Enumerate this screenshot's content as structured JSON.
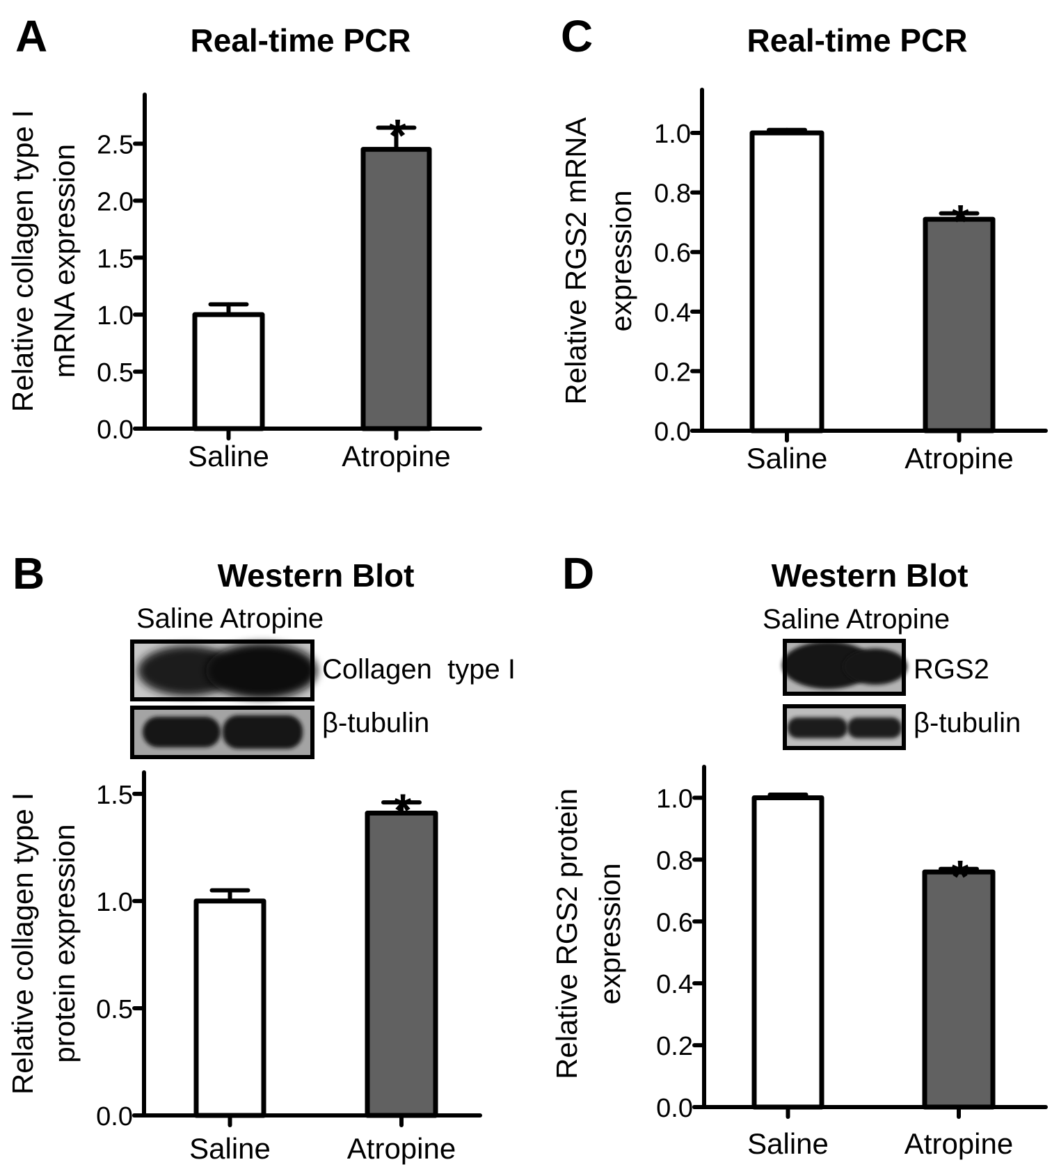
{
  "colors": {
    "saline_fill": "#ffffff",
    "atropine_fill": "#616161",
    "stroke": "#000000"
  },
  "chart_data": [
    {
      "panel": "A",
      "type": "bar",
      "title": "Real-time PCR",
      "ylabel_lines": [
        "Relative collagen type I",
        "mRNA expression"
      ],
      "xlabel": "",
      "categories": [
        "Saline",
        "Atropine"
      ],
      "values": [
        1.0,
        2.45
      ],
      "errors": [
        0.09,
        0.19
      ],
      "significance": [
        "",
        "*"
      ],
      "yticks": [
        "0.0",
        "0.5",
        "1.0",
        "1.5",
        "2.0",
        "2.5"
      ],
      "ytick_values": [
        0,
        0.5,
        1.0,
        1.5,
        2.0,
        2.5
      ],
      "ylim": [
        0,
        2.93
      ],
      "grid": false
    },
    {
      "panel": "B",
      "type": "bar",
      "title": "Western Blot",
      "ylabel_lines": [
        "Relative collagen type I",
        "protein expression"
      ],
      "xlabel": "",
      "categories": [
        "Saline",
        "Atropine"
      ],
      "values": [
        1.0,
        1.41
      ],
      "errors": [
        0.05,
        0.05
      ],
      "significance": [
        "",
        "*"
      ],
      "yticks": [
        "0.0",
        "0.5",
        "1.0",
        "1.5"
      ],
      "ytick_values": [
        0,
        0.5,
        1.0,
        1.5
      ],
      "ylim": [
        0,
        1.6
      ],
      "grid": false
    },
    {
      "panel": "C",
      "type": "bar",
      "title": "Real-time PCR",
      "ylabel_lines": [
        "Relative RGS2 mRNA",
        "expression"
      ],
      "xlabel": "",
      "categories": [
        "Saline",
        "Atropine"
      ],
      "values": [
        1.0,
        0.71
      ],
      "errors": [
        0.01,
        0.02
      ],
      "significance": [
        "",
        "*"
      ],
      "yticks": [
        "0.0",
        "0.2",
        "0.4",
        "0.6",
        "0.8",
        "1.0"
      ],
      "ytick_values": [
        0,
        0.2,
        0.4,
        0.6,
        0.8,
        1.0
      ],
      "ylim": [
        0,
        1.145
      ],
      "grid": false
    },
    {
      "panel": "D",
      "type": "bar",
      "title": "Western Blot",
      "ylabel_lines": [
        "Relative RGS2 protein",
        "expression"
      ],
      "xlabel": "",
      "categories": [
        "Saline",
        "Atropine"
      ],
      "values": [
        1.0,
        0.76
      ],
      "errors": [
        0.01,
        0.01
      ],
      "significance": [
        "",
        "*"
      ],
      "yticks": [
        "0.0",
        "0.2",
        "0.4",
        "0.6",
        "0.8",
        "1.0"
      ],
      "ytick_values": [
        0,
        0.2,
        0.4,
        0.6,
        0.8,
        1.0
      ],
      "ylim": [
        0,
        1.1
      ],
      "grid": false
    }
  ],
  "blots": {
    "B": {
      "lane_header": "Saline Atropine",
      "rows": [
        {
          "label": "Collagen  type I",
          "band": "collagen"
        },
        {
          "label": "β-tubulin",
          "band": "tubulin"
        }
      ]
    },
    "D": {
      "lane_header": "Saline Atropine",
      "rows": [
        {
          "label": "RGS2",
          "band": "rgs2"
        },
        {
          "label": "β-tubulin",
          "band": "tubulin"
        }
      ]
    }
  }
}
